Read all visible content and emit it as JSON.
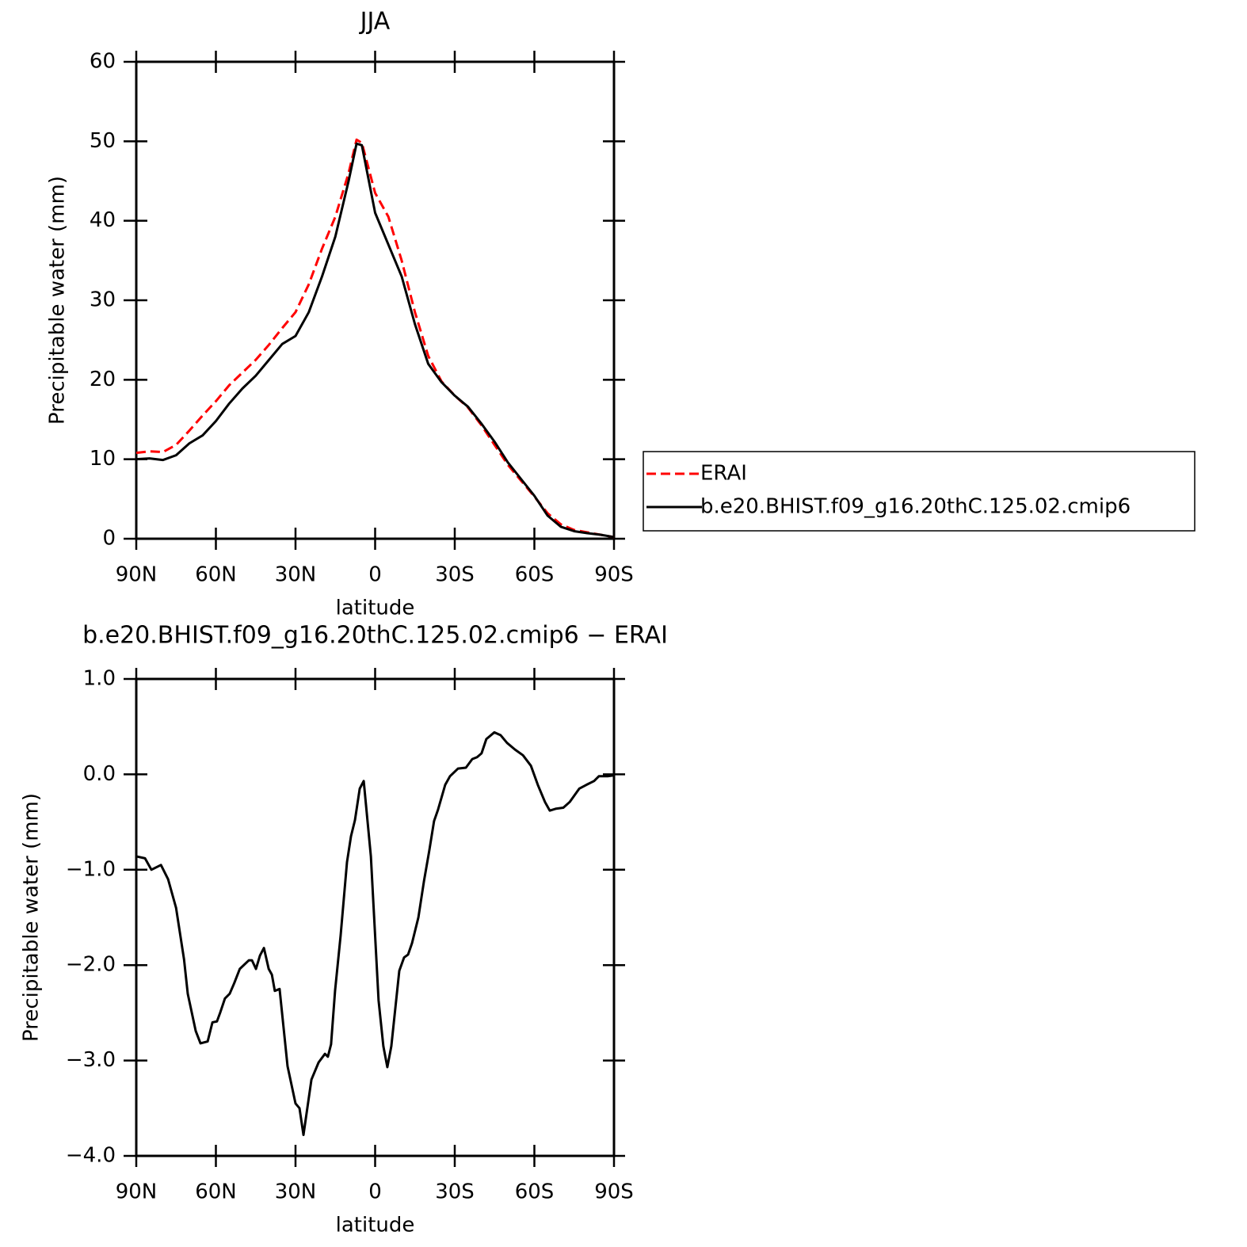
{
  "chart_data": [
    {
      "type": "line",
      "title": "JJA",
      "xlabel": "latitude",
      "ylabel": "Precipitable water (mm)",
      "xlim": [
        90,
        -90
      ],
      "ylim": [
        0,
        60
      ],
      "xticks": [
        {
          "value": 90,
          "label": "90N"
        },
        {
          "value": 60,
          "label": "60N"
        },
        {
          "value": 30,
          "label": "30N"
        },
        0,
        {
          "value": -30,
          "label": "30S"
        },
        {
          "value": -60,
          "label": "60S"
        },
        {
          "value": -90,
          "label": "90S"
        }
      ],
      "yticks": [
        0,
        10,
        20,
        30,
        40,
        50,
        60
      ],
      "legend": "right",
      "x": [
        90,
        85,
        80,
        75,
        70,
        65,
        60,
        55,
        50,
        45,
        40,
        35,
        30,
        25,
        20,
        15,
        10,
        7,
        5,
        0,
        -5,
        -10,
        -15,
        -20,
        -25,
        -30,
        -35,
        -40,
        -45,
        -50,
        -55,
        -60,
        -65,
        -70,
        -75,
        -80,
        -85,
        -90
      ],
      "series": [
        {
          "name": "ERAI",
          "color": "#ff0000",
          "line_style": "dashed",
          "values": [
            10.8,
            11.0,
            10.9,
            11.8,
            13.6,
            15.5,
            17.3,
            19.3,
            20.9,
            22.5,
            24.4,
            26.5,
            28.5,
            32.0,
            36.5,
            40.5,
            46.0,
            50.2,
            49.8,
            43.5,
            40.5,
            35.0,
            28.5,
            23.0,
            19.8,
            18.0,
            16.5,
            14.3,
            11.8,
            9.3,
            7.3,
            5.3,
            3.2,
            1.8,
            1.1,
            0.8,
            0.5,
            0.2
          ]
        },
        {
          "name": "b.e20.BHIST.f09_g16.20thC.125.02.cmip6",
          "color": "#000000",
          "line_style": "solid",
          "values": [
            10.0,
            10.1,
            9.9,
            10.5,
            12.0,
            13.0,
            14.8,
            17.0,
            18.9,
            20.5,
            22.5,
            24.5,
            25.5,
            28.5,
            33.0,
            38.0,
            45.0,
            49.7,
            49.5,
            41.0,
            37.0,
            33.0,
            27.0,
            22.0,
            19.7,
            18.0,
            16.6,
            14.5,
            12.2,
            9.6,
            7.5,
            5.4,
            2.9,
            1.5,
            0.95,
            0.7,
            0.5,
            0.2
          ]
        }
      ]
    },
    {
      "type": "line",
      "title": "b.e20.BHIST.f09_g16.20thC.125.02.cmip6 − ERAI",
      "xlabel": "latitude",
      "ylabel": "Precipitable water (mm)",
      "xlim": [
        90,
        -90
      ],
      "ylim": [
        -4,
        1
      ],
      "xticks": [
        {
          "value": 90,
          "label": "90N"
        },
        {
          "value": 60,
          "label": "60N"
        },
        {
          "value": 30,
          "label": "30N"
        },
        0,
        {
          "value": -30,
          "label": "30S"
        },
        {
          "value": -60,
          "label": "60S"
        },
        {
          "value": -90,
          "label": "90S"
        }
      ],
      "yticks": [
        {
          "value": 1,
          "label": "1.0"
        },
        {
          "value": 0,
          "label": "0.0"
        },
        {
          "value": -1,
          "label": "−1.0"
        },
        {
          "value": -2,
          "label": "−2.0"
        },
        {
          "value": -3,
          "label": "−3.0"
        },
        {
          "value": -4,
          "label": "−4.0"
        }
      ],
      "x": [
        90,
        86.7,
        84.3,
        80.7,
        78,
        75,
        72,
        70.6,
        67.6,
        65.8,
        63.1,
        61.3,
        59.6,
        58.4,
        56.6,
        54.8,
        53.1,
        51,
        47.6,
        46.4,
        44.9,
        43.4,
        41.9,
        40.1,
        38.9,
        37.8,
        36,
        33,
        30,
        28.5,
        27,
        24,
        21.3,
        18.9,
        17.8,
        16.6,
        15.1,
        13,
        10.6,
        9.1,
        7.6,
        5.8,
        4.3,
        1.6,
        -1.3,
        -3.1,
        -4.6,
        -6.1,
        -9.1,
        -10.9,
        -12.4,
        -13.9,
        -16.3,
        -18.4,
        -20.4,
        -22.2,
        -23.7,
        -26.4,
        -28.2,
        -31.2,
        -34.2,
        -36.6,
        -38.4,
        -40.1,
        -41.9,
        -44.9,
        -47.3,
        -49.7,
        -52.7,
        -55.7,
        -58.7,
        -61.3,
        -64,
        -65.8,
        -68.2,
        -70.9,
        -73.3,
        -76.9,
        -79.6,
        -82.5,
        -84.3,
        -87.6,
        -90
      ],
      "series": [
        {
          "color": "#000000",
          "line_style": "solid",
          "values": [
            -0.86,
            -0.88,
            -1.0,
            -0.95,
            -1.1,
            -1.4,
            -1.94,
            -2.3,
            -2.69,
            -2.82,
            -2.8,
            -2.6,
            -2.59,
            -2.5,
            -2.35,
            -2.3,
            -2.19,
            -2.04,
            -1.95,
            -1.95,
            -2.04,
            -1.9,
            -1.82,
            -2.04,
            -2.1,
            -2.27,
            -2.25,
            -3.06,
            -3.45,
            -3.5,
            -3.78,
            -3.2,
            -3.02,
            -2.93,
            -2.96,
            -2.83,
            -2.27,
            -1.69,
            -0.92,
            -0.65,
            -0.48,
            -0.15,
            -0.07,
            -0.86,
            -2.37,
            -2.85,
            -3.07,
            -2.85,
            -2.06,
            -1.92,
            -1.89,
            -1.77,
            -1.5,
            -1.12,
            -0.8,
            -0.49,
            -0.37,
            -0.11,
            -0.02,
            0.06,
            0.07,
            0.16,
            0.18,
            0.22,
            0.37,
            0.44,
            0.41,
            0.33,
            0.26,
            0.2,
            0.09,
            -0.11,
            -0.29,
            -0.38,
            -0.36,
            -0.35,
            -0.29,
            -0.15,
            -0.11,
            -0.07,
            -0.02,
            -0.02,
            -0.01
          ]
        }
      ]
    }
  ]
}
